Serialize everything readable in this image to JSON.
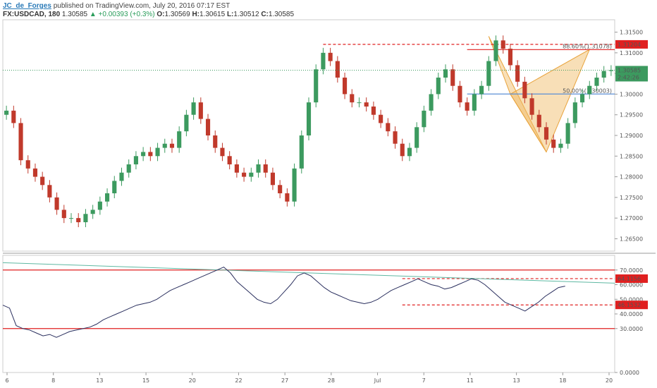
{
  "header": {
    "author": "JC_de_Forges",
    "published": "published on TradingView.com, July 20, 2016 07:17 EST"
  },
  "ohlc_line": {
    "symbol": "FX:USDCAD, 180",
    "last": "1.30585",
    "change_arrow": "▲",
    "change": "+0.00393 (+0.3%)",
    "o_label": "O:",
    "o": "1.30569",
    "h_label": "H:",
    "h": "1.30615",
    "l_label": "L:",
    "l": "1.30512",
    "c_label": "C:",
    "c": "1.30585"
  },
  "colors": {
    "up": "#3c9a5f",
    "down": "#c0392b",
    "pattern": "#f0b860",
    "pattern_line": "#e8a33c",
    "rsi": "#2a2f5e",
    "trend": "#5fb8a2",
    "level": "#e02020"
  },
  "chart_data": [
    {
      "type": "candlestick",
      "symbol": "FX:USDCAD",
      "timeframe": "180",
      "ylim": [
        1.262,
        1.318
      ],
      "x_tick_labels": [
        "6",
        "8",
        "13",
        "15",
        "20",
        "22",
        "27",
        "28",
        "Jul",
        "7",
        "11",
        "13",
        "18",
        "20"
      ],
      "y_tick_labels": [
        "1.31500",
        "1.31000",
        "1.30500",
        "1.30000",
        "1.29500",
        "1.29000",
        "1.28500",
        "1.28000",
        "1.27500",
        "1.27000",
        "1.26500"
      ],
      "closes": [
        1.296,
        1.293,
        1.284,
        1.282,
        1.28,
        1.278,
        1.275,
        1.272,
        1.27,
        1.27,
        1.269,
        1.271,
        1.272,
        1.274,
        1.276,
        1.279,
        1.281,
        1.283,
        1.285,
        1.286,
        1.285,
        1.287,
        1.288,
        1.287,
        1.291,
        1.295,
        1.298,
        1.294,
        1.29,
        1.287,
        1.285,
        1.283,
        1.281,
        1.28,
        1.281,
        1.283,
        1.281,
        1.278,
        1.276,
        1.274,
        1.282,
        1.29,
        1.298,
        1.306,
        1.31,
        1.308,
        1.304,
        1.3,
        1.298,
        1.298,
        1.297,
        1.295,
        1.293,
        1.291,
        1.288,
        1.285,
        1.287,
        1.292,
        1.296,
        1.3,
        1.304,
        1.306,
        1.302,
        1.298,
        1.296,
        1.3,
        1.302,
        1.308,
        1.313,
        1.311,
        1.307,
        1.303,
        1.299,
        1.295,
        1.292,
        1.289,
        1.287,
        1.288,
        1.293,
        1.298,
        1.3,
        1.302,
        1.304,
        1.3056,
        1.3058
      ],
      "levels": [
        {
          "label": "1.31204",
          "value": 1.31204,
          "style": "dashed"
        },
        {
          "label": "88.60%(1.31078)",
          "value": 1.31078,
          "style": "solid"
        },
        {
          "label": "50.00%(1.30003)",
          "value": 1.30003,
          "style": "solid"
        }
      ],
      "last_price": {
        "label": "1.30585",
        "timer": "2:42:26"
      },
      "pattern_points": [
        [
          67,
          1.314
        ],
        [
          70,
          1.3
        ],
        [
          75,
          1.286
        ],
        [
          81,
          1.3108
        ]
      ],
      "pattern_label": ""
    },
    {
      "type": "line",
      "indicator": "RSI",
      "ylim": [
        0,
        80
      ],
      "y_tick_labels": [
        "70.0000",
        "60.0000",
        "50.0000",
        "40.0000",
        "30.0000",
        "0.0000"
      ],
      "values": [
        46,
        44,
        32,
        30,
        29,
        27,
        25,
        26,
        24,
        26,
        28,
        29,
        30,
        31,
        33,
        36,
        38,
        40,
        42,
        44,
        46,
        47,
        48,
        50,
        53,
        56,
        58,
        60,
        62,
        64,
        66,
        68,
        70,
        72,
        68,
        62,
        58,
        54,
        50,
        48,
        47,
        50,
        55,
        60,
        66,
        68,
        66,
        62,
        58,
        55,
        53,
        51,
        49,
        48,
        47,
        48,
        50,
        53,
        56,
        58,
        60,
        62,
        64,
        62,
        60,
        59,
        57,
        58,
        60,
        62,
        64,
        63,
        60,
        56,
        52,
        48,
        46,
        44,
        42,
        45,
        48,
        52,
        55,
        58,
        59
      ],
      "levels": [
        {
          "label": "70.0000",
          "value": 70
        },
        {
          "label": "30.0000",
          "value": 30
        },
        {
          "label": "64.1156",
          "value": 64.1156
        },
        {
          "label": "46.1532",
          "value": 46.1532
        }
      ]
    }
  ]
}
